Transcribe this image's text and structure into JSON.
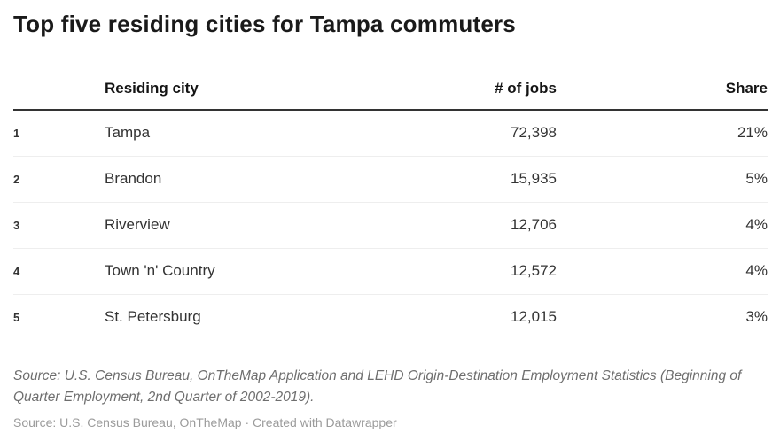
{
  "title": "Top five residing cities for Tampa commuters",
  "table": {
    "headers": {
      "rank": "",
      "city": "Residing city",
      "jobs": "# of jobs",
      "share": "Share"
    },
    "rows": [
      {
        "rank": "1",
        "city": "Tampa",
        "jobs": "72,398",
        "share": "21%"
      },
      {
        "rank": "2",
        "city": "Brandon",
        "jobs": "15,935",
        "share": "5%"
      },
      {
        "rank": "3",
        "city": "Riverview",
        "jobs": "12,706",
        "share": "4%"
      },
      {
        "rank": "4",
        "city": "Town 'n' Country",
        "jobs": "12,572",
        "share": "4%"
      },
      {
        "rank": "5",
        "city": "St. Petersburg",
        "jobs": "12,015",
        "share": "3%"
      }
    ]
  },
  "footer": {
    "source_note": "Source: U.S. Census Bureau, OnTheMap Application and LEHD Origin-Destination Employment Statistics (Beginning of Quarter Employment, 2nd Quarter of 2002-2019).",
    "byline": "Source: U.S. Census Bureau, OnTheMap · Created with Datawrapper"
  },
  "colors": {
    "title_text": "#1a1a1a",
    "header_text": "#141414",
    "body_text": "#333333",
    "header_rule": "#333333",
    "row_divider": "#eeeeee",
    "source_text": "#6e6e6e",
    "byline_text": "#9b9b9b",
    "background": "#ffffff"
  },
  "chart_data": {
    "type": "table",
    "title": "Top five residing cities for Tampa commuters",
    "columns": [
      "Residing city",
      "# of jobs",
      "Share"
    ],
    "rows": [
      [
        "Tampa",
        72398,
        "21%"
      ],
      [
        "Brandon",
        15935,
        "5%"
      ],
      [
        "Riverview",
        12706,
        "4%"
      ],
      [
        "Town 'n' Country",
        12572,
        "4%"
      ],
      [
        "St. Petersburg",
        12015,
        "3%"
      ]
    ],
    "source": "U.S. Census Bureau, OnTheMap Application and LEHD Origin-Destination Employment Statistics (Beginning of Quarter Employment, 2nd Quarter of 2002-2019)",
    "attribution": "Created with Datawrapper"
  }
}
